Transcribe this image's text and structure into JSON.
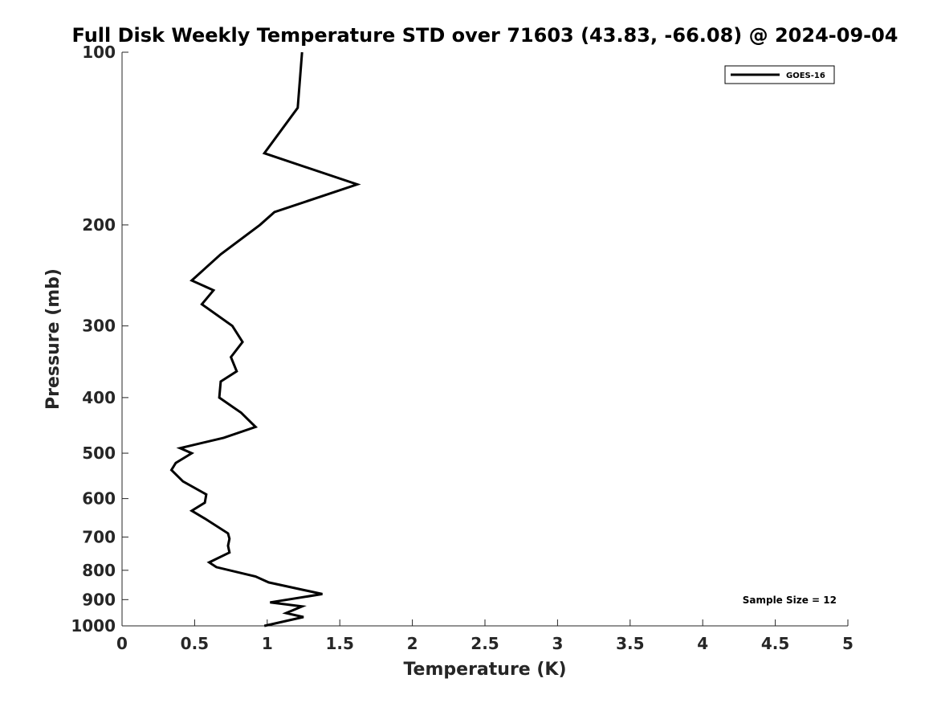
{
  "chart_data": {
    "type": "line",
    "title": "Full Disk Weekly Temperature STD over 71603 (43.83, -66.08) @ 2024-09-04",
    "xlabel": "Temperature (K)",
    "ylabel": "Pressure (mb)",
    "xlim": [
      0,
      5
    ],
    "ylim": [
      100,
      1000
    ],
    "yscale": "log",
    "y_reversed": true,
    "grid": false,
    "x_ticks": [
      0,
      0.5,
      1,
      1.5,
      2,
      2.5,
      3,
      3.5,
      4,
      4.5,
      5
    ],
    "x_tick_labels": [
      "0",
      "0.5",
      "1",
      "1.5",
      "2",
      "2.5",
      "3",
      "3.5",
      "4",
      "4.5",
      "5"
    ],
    "y_ticks": [
      100,
      200,
      300,
      400,
      500,
      600,
      700,
      800,
      900,
      1000
    ],
    "y_tick_labels": [
      "100",
      "200",
      "300",
      "400",
      "500",
      "600",
      "700",
      "800",
      "900",
      "1000"
    ],
    "legend": {
      "position": "top-right",
      "entries": [
        "GOES-16"
      ]
    },
    "annotations": [
      "Sample Size = 12"
    ],
    "series": [
      {
        "name": "GOES-16",
        "color": "#000000",
        "temperature": [
          1.24,
          1.21,
          0.98,
          1.62,
          1.05,
          0.95,
          0.68,
          0.48,
          0.63,
          0.55,
          0.76,
          0.83,
          0.75,
          0.79,
          0.68,
          0.67,
          0.82,
          0.92,
          0.7,
          0.4,
          0.48,
          0.37,
          0.34,
          0.42,
          0.58,
          0.57,
          0.48,
          0.57,
          0.73,
          0.74,
          0.73,
          0.74,
          0.6,
          0.65,
          0.92,
          1.01,
          1.38,
          1.02,
          1.24,
          1.13,
          1.25,
          0.98
        ],
        "pressure": [
          100,
          125,
          150,
          170,
          190,
          200,
          225,
          250,
          260,
          275,
          300,
          320,
          340,
          360,
          375,
          400,
          425,
          450,
          470,
          490,
          500,
          520,
          535,
          560,
          590,
          610,
          630,
          650,
          690,
          705,
          725,
          745,
          775,
          790,
          820,
          840,
          880,
          910,
          925,
          950,
          965,
          1000
        ]
      }
    ]
  }
}
